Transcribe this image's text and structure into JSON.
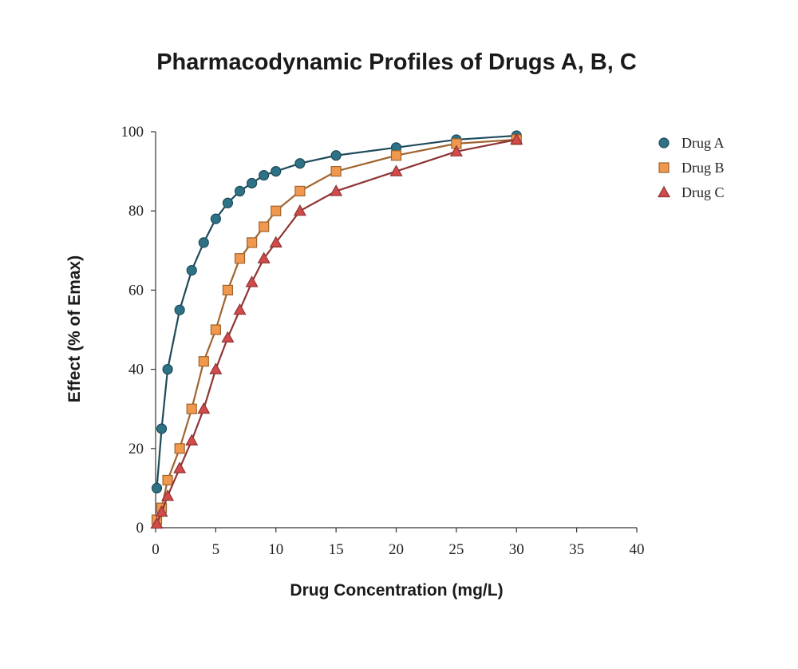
{
  "chart_data": {
    "type": "line",
    "title": "Pharmacodynamic Profiles of Drugs A, B, C",
    "xlabel": "Drug Concentration (mg/L)",
    "ylabel": "Effect (% of Emax)",
    "xlim": [
      0,
      40
    ],
    "ylim": [
      0,
      100
    ],
    "xticks": [
      0,
      5,
      10,
      15,
      20,
      25,
      30,
      35,
      40
    ],
    "yticks": [
      0,
      20,
      40,
      60,
      80,
      100
    ],
    "grid": false,
    "legend_position": "top-right",
    "series": [
      {
        "name": "Drug A",
        "marker": "circle",
        "line_color": "#1e4a5a",
        "marker_color": "#2e7285",
        "points": [
          [
            0.1,
            10
          ],
          [
            0.5,
            25
          ],
          [
            1,
            40
          ],
          [
            2,
            55
          ],
          [
            3,
            65
          ],
          [
            4,
            72
          ],
          [
            5,
            78
          ],
          [
            6,
            82
          ],
          [
            7,
            85
          ],
          [
            8,
            87
          ],
          [
            9,
            89
          ],
          [
            10,
            90
          ],
          [
            12,
            92
          ],
          [
            15,
            94
          ],
          [
            20,
            96
          ],
          [
            25,
            98
          ],
          [
            30,
            99
          ]
        ]
      },
      {
        "name": "Drug B",
        "marker": "square",
        "line_color": "#a0642e",
        "marker_color": "#f0984e",
        "points": [
          [
            0.1,
            2
          ],
          [
            0.5,
            5
          ],
          [
            1,
            12
          ],
          [
            2,
            20
          ],
          [
            3,
            30
          ],
          [
            4,
            42
          ],
          [
            5,
            50
          ],
          [
            6,
            60
          ],
          [
            7,
            68
          ],
          [
            8,
            72
          ],
          [
            9,
            76
          ],
          [
            10,
            80
          ],
          [
            12,
            85
          ],
          [
            15,
            90
          ],
          [
            20,
            94
          ],
          [
            25,
            97
          ],
          [
            30,
            98
          ]
        ]
      },
      {
        "name": "Drug C",
        "marker": "triangle",
        "line_color": "#8e3434",
        "marker_color": "#d24a4a",
        "points": [
          [
            0.1,
            1
          ],
          [
            0.5,
            4
          ],
          [
            1,
            8
          ],
          [
            2,
            15
          ],
          [
            3,
            22
          ],
          [
            4,
            30
          ],
          [
            5,
            40
          ],
          [
            6,
            48
          ],
          [
            7,
            55
          ],
          [
            8,
            62
          ],
          [
            9,
            68
          ],
          [
            10,
            72
          ],
          [
            12,
            80
          ],
          [
            15,
            85
          ],
          [
            20,
            90
          ],
          [
            25,
            95
          ],
          [
            30,
            98
          ]
        ]
      }
    ]
  }
}
